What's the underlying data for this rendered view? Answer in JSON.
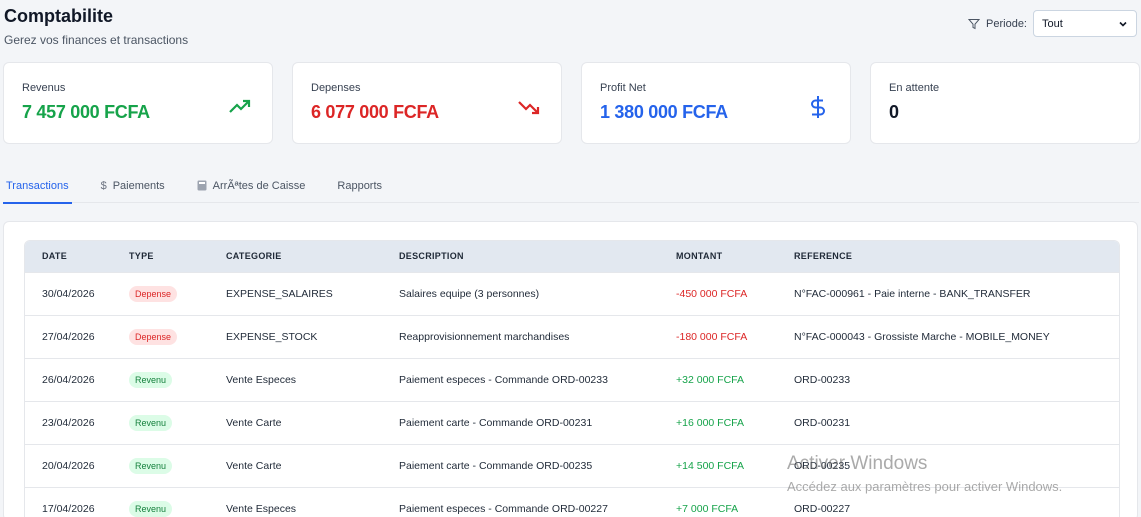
{
  "header": {
    "title": "Comptabilite",
    "subtitle": "Gerez vos finances et transactions"
  },
  "filter": {
    "icon": "filter-icon",
    "label": "Periode:",
    "selected": "Tout"
  },
  "cards": [
    {
      "label": "Revenus",
      "value": "7 457 000 FCFA",
      "icon": "trending-up-icon",
      "color": "#16a34a"
    },
    {
      "label": "Depenses",
      "value": "6 077 000 FCFA",
      "icon": "trending-down-icon",
      "color": "#dc2626"
    },
    {
      "label": "Profit Net",
      "value": "1 380 000 FCFA",
      "icon": "dollar-icon",
      "color": "#2563eb"
    },
    {
      "label": "En attente",
      "value": "0",
      "icon": "",
      "color": "#111827"
    }
  ],
  "tabs": [
    {
      "label": "Transactions",
      "active": true,
      "icon": ""
    },
    {
      "label": "Paiements",
      "active": false,
      "icon": "dollar-icon"
    },
    {
      "label": "ArrÃªtes de Caisse",
      "active": false,
      "icon": "calculator-icon"
    },
    {
      "label": "Rapports",
      "active": false,
      "icon": ""
    }
  ],
  "table": {
    "columns": [
      "DATE",
      "TYPE",
      "CATEGORIE",
      "DESCRIPTION",
      "MONTANT",
      "REFERENCE"
    ],
    "rows": [
      {
        "date": "30/04/2026",
        "type": "Depense",
        "category": "EXPENSE_SALAIRES",
        "description": "Salaires equipe (3 personnes)",
        "amount": "-450 000 FCFA",
        "reference": "N°FAC-000961 - Paie interne - BANK_TRANSFER"
      },
      {
        "date": "27/04/2026",
        "type": "Depense",
        "category": "EXPENSE_STOCK",
        "description": "Reapprovisionnement marchandises",
        "amount": "-180 000 FCFA",
        "reference": "N°FAC-000043 - Grossiste Marche - MOBILE_MONEY"
      },
      {
        "date": "26/04/2026",
        "type": "Revenu",
        "category": "Vente Especes",
        "description": "Paiement especes - Commande ORD-00233",
        "amount": "+32 000 FCFA",
        "reference": "ORD-00233"
      },
      {
        "date": "23/04/2026",
        "type": "Revenu",
        "category": "Vente Carte",
        "description": "Paiement carte - Commande ORD-00231",
        "amount": "+16 000 FCFA",
        "reference": "ORD-00231"
      },
      {
        "date": "20/04/2026",
        "type": "Revenu",
        "category": "Vente Carte",
        "description": "Paiement carte - Commande ORD-00235",
        "amount": "+14 500 FCFA",
        "reference": "ORD-00235"
      },
      {
        "date": "17/04/2026",
        "type": "Revenu",
        "category": "Vente Especes",
        "description": "Paiement especes - Commande ORD-00227",
        "amount": "+7 000 FCFA",
        "reference": "ORD-00227"
      }
    ]
  },
  "watermark": {
    "title": "Activer Windows",
    "subtitle": "Accédez aux paramètres pour activer Windows."
  }
}
